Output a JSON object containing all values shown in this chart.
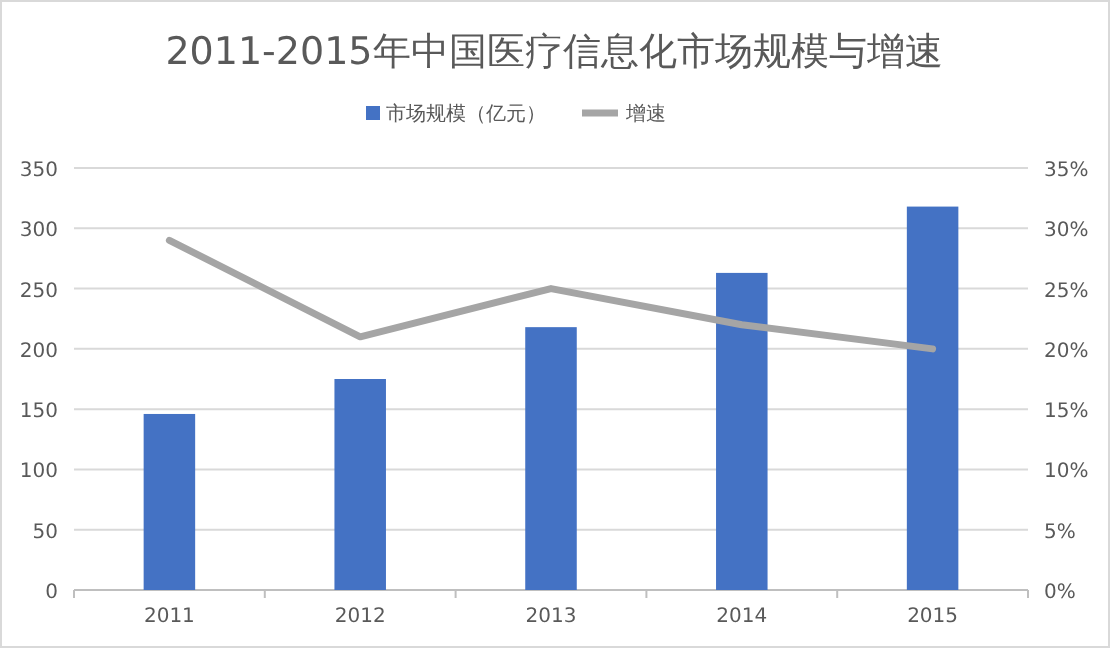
{
  "chart_data": {
    "type": "bar",
    "title": "2011-2015年中国医疗信息化市场规模与增速",
    "categories": [
      "2011",
      "2012",
      "2013",
      "2014",
      "2015"
    ],
    "series": [
      {
        "name": "市场规模（亿元）",
        "color": "#4472c4",
        "values": [
          146,
          175,
          218,
          263,
          318
        ]
      },
      {
        "name": "增速",
        "type": "line",
        "axis": "y2",
        "color": "#a5a5a5",
        "values": [
          29,
          21,
          25,
          22,
          20
        ]
      }
    ],
    "ylim": [
      0,
      350
    ],
    "yticks": [
      0,
      50,
      100,
      150,
      200,
      250,
      300,
      350
    ],
    "y2lim": [
      0,
      35
    ],
    "y2ticks": [
      {
        "value": 0,
        "label": "0%"
      },
      {
        "value": 5,
        "label": "5%"
      },
      {
        "value": 10,
        "label": "10%"
      },
      {
        "value": 15,
        "label": "15%"
      },
      {
        "value": 20,
        "label": "20%"
      },
      {
        "value": 25,
        "label": "25%"
      },
      {
        "value": 30,
        "label": "30%"
      },
      {
        "value": 35,
        "label": "35%"
      }
    ],
    "grid": "y",
    "legend": "top",
    "marker": "none",
    "line_style": "solid"
  }
}
